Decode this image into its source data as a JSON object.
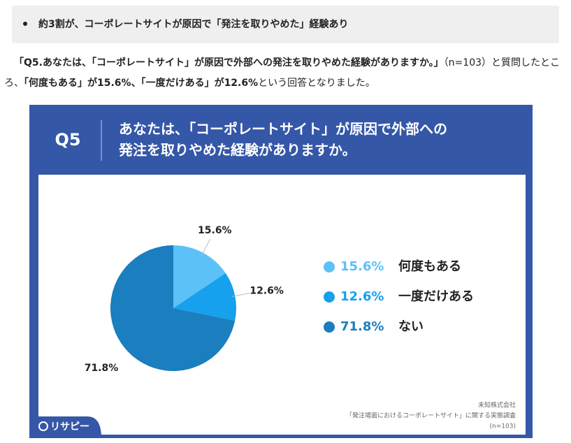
{
  "header": {
    "bullet": "約3割が、コーポレートサイトが原因で「発注を取りやめた」経験あり"
  },
  "paragraph": {
    "segments": [
      {
        "text": "「Q5.あなたは、「コーポレートサイト」が原因で外部への発注を取りやめた経験がありますか。」",
        "bold": true
      },
      {
        "text": "（n=103）と質問したところ、",
        "bold": false
      },
      {
        "text": "「何度もある」が15.6%、「一度だけある」が12.6%",
        "bold": true
      },
      {
        "text": "という回答となりました。",
        "bold": false
      }
    ]
  },
  "chart_data": {
    "type": "pie",
    "label": "Q5",
    "title_lines": [
      "あなたは、「コーポレートサイト」が原因で外部への",
      "発注を取りやめた経験がありますか。"
    ],
    "categories": [
      "何度もある",
      "一度だけある",
      "ない"
    ],
    "values": [
      15.6,
      12.6,
      71.8
    ],
    "value_labels": [
      "15.6%",
      "12.6%",
      "71.8%"
    ],
    "colors": [
      "#5cc1f7",
      "#16a0ee",
      "#1a7ebf"
    ],
    "notes": [
      "未知株式会社",
      "「発注場面におけるコーポレートサイト」に関する実態調査",
      "(n=103)"
    ],
    "logo": "リサピー"
  }
}
